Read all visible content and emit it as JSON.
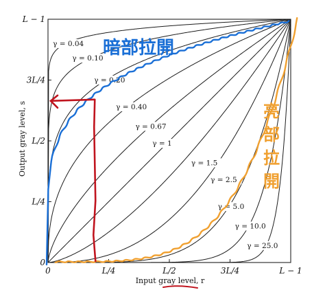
{
  "chart_data": {
    "type": "line",
    "xlabel": "Input gray level, r",
    "ylabel": "Output gray level, s",
    "xlim": [
      0,
      1
    ],
    "ylim": [
      0,
      1
    ],
    "x_ticks": [
      {
        "value": 0,
        "label": "0"
      },
      {
        "value": 0.25,
        "label": "L/4"
      },
      {
        "value": 0.5,
        "label": "L/2"
      },
      {
        "value": 0.75,
        "label": "3L/4"
      },
      {
        "value": 1,
        "label": "L − 1"
      }
    ],
    "y_ticks": [
      {
        "value": 0,
        "label": "0"
      },
      {
        "value": 0.25,
        "label": "L/4"
      },
      {
        "value": 0.5,
        "label": "L/2"
      },
      {
        "value": 0.75,
        "label": "3L/4"
      },
      {
        "value": 1,
        "label": "L − 1"
      }
    ],
    "series": [
      {
        "name": "γ = 0.04",
        "gamma": 0.04,
        "label_at": [
          0.02,
          0.89
        ]
      },
      {
        "name": "γ = 0.10",
        "gamma": 0.1,
        "label_at": [
          0.1,
          0.83
        ]
      },
      {
        "name": "γ = 0.20",
        "gamma": 0.2,
        "label_at": [
          0.19,
          0.74
        ]
      },
      {
        "name": "γ = 0.40",
        "gamma": 0.4,
        "label_at": [
          0.28,
          0.63
        ]
      },
      {
        "name": "γ = 0.67",
        "gamma": 0.67,
        "label_at": [
          0.36,
          0.55
        ]
      },
      {
        "name": "γ = 1",
        "gamma": 1,
        "label_at": [
          0.43,
          0.48
        ]
      },
      {
        "name": "γ = 1.5",
        "gamma": 1.5,
        "label_at": [
          0.59,
          0.4
        ]
      },
      {
        "name": "γ = 2.5",
        "gamma": 2.5,
        "label_at": [
          0.67,
          0.33
        ]
      },
      {
        "name": "γ = 5.0",
        "gamma": 5.0,
        "label_at": [
          0.7,
          0.22
        ]
      },
      {
        "name": "γ = 10.0",
        "gamma": 10.0,
        "label_at": [
          0.77,
          0.14
        ]
      },
      {
        "name": "γ = 25.0",
        "gamma": 25.0,
        "label_at": [
          0.82,
          0.06
        ]
      }
    ],
    "annotations": {
      "blue_text": "暗部拉開",
      "orange_text": "亮部拉開",
      "colors": {
        "blue": "#1a6fd6",
        "orange": "#f0a030",
        "red": "#c0141e"
      },
      "red_marker_r": 0.19,
      "red_marker_s": 0.67
    }
  }
}
